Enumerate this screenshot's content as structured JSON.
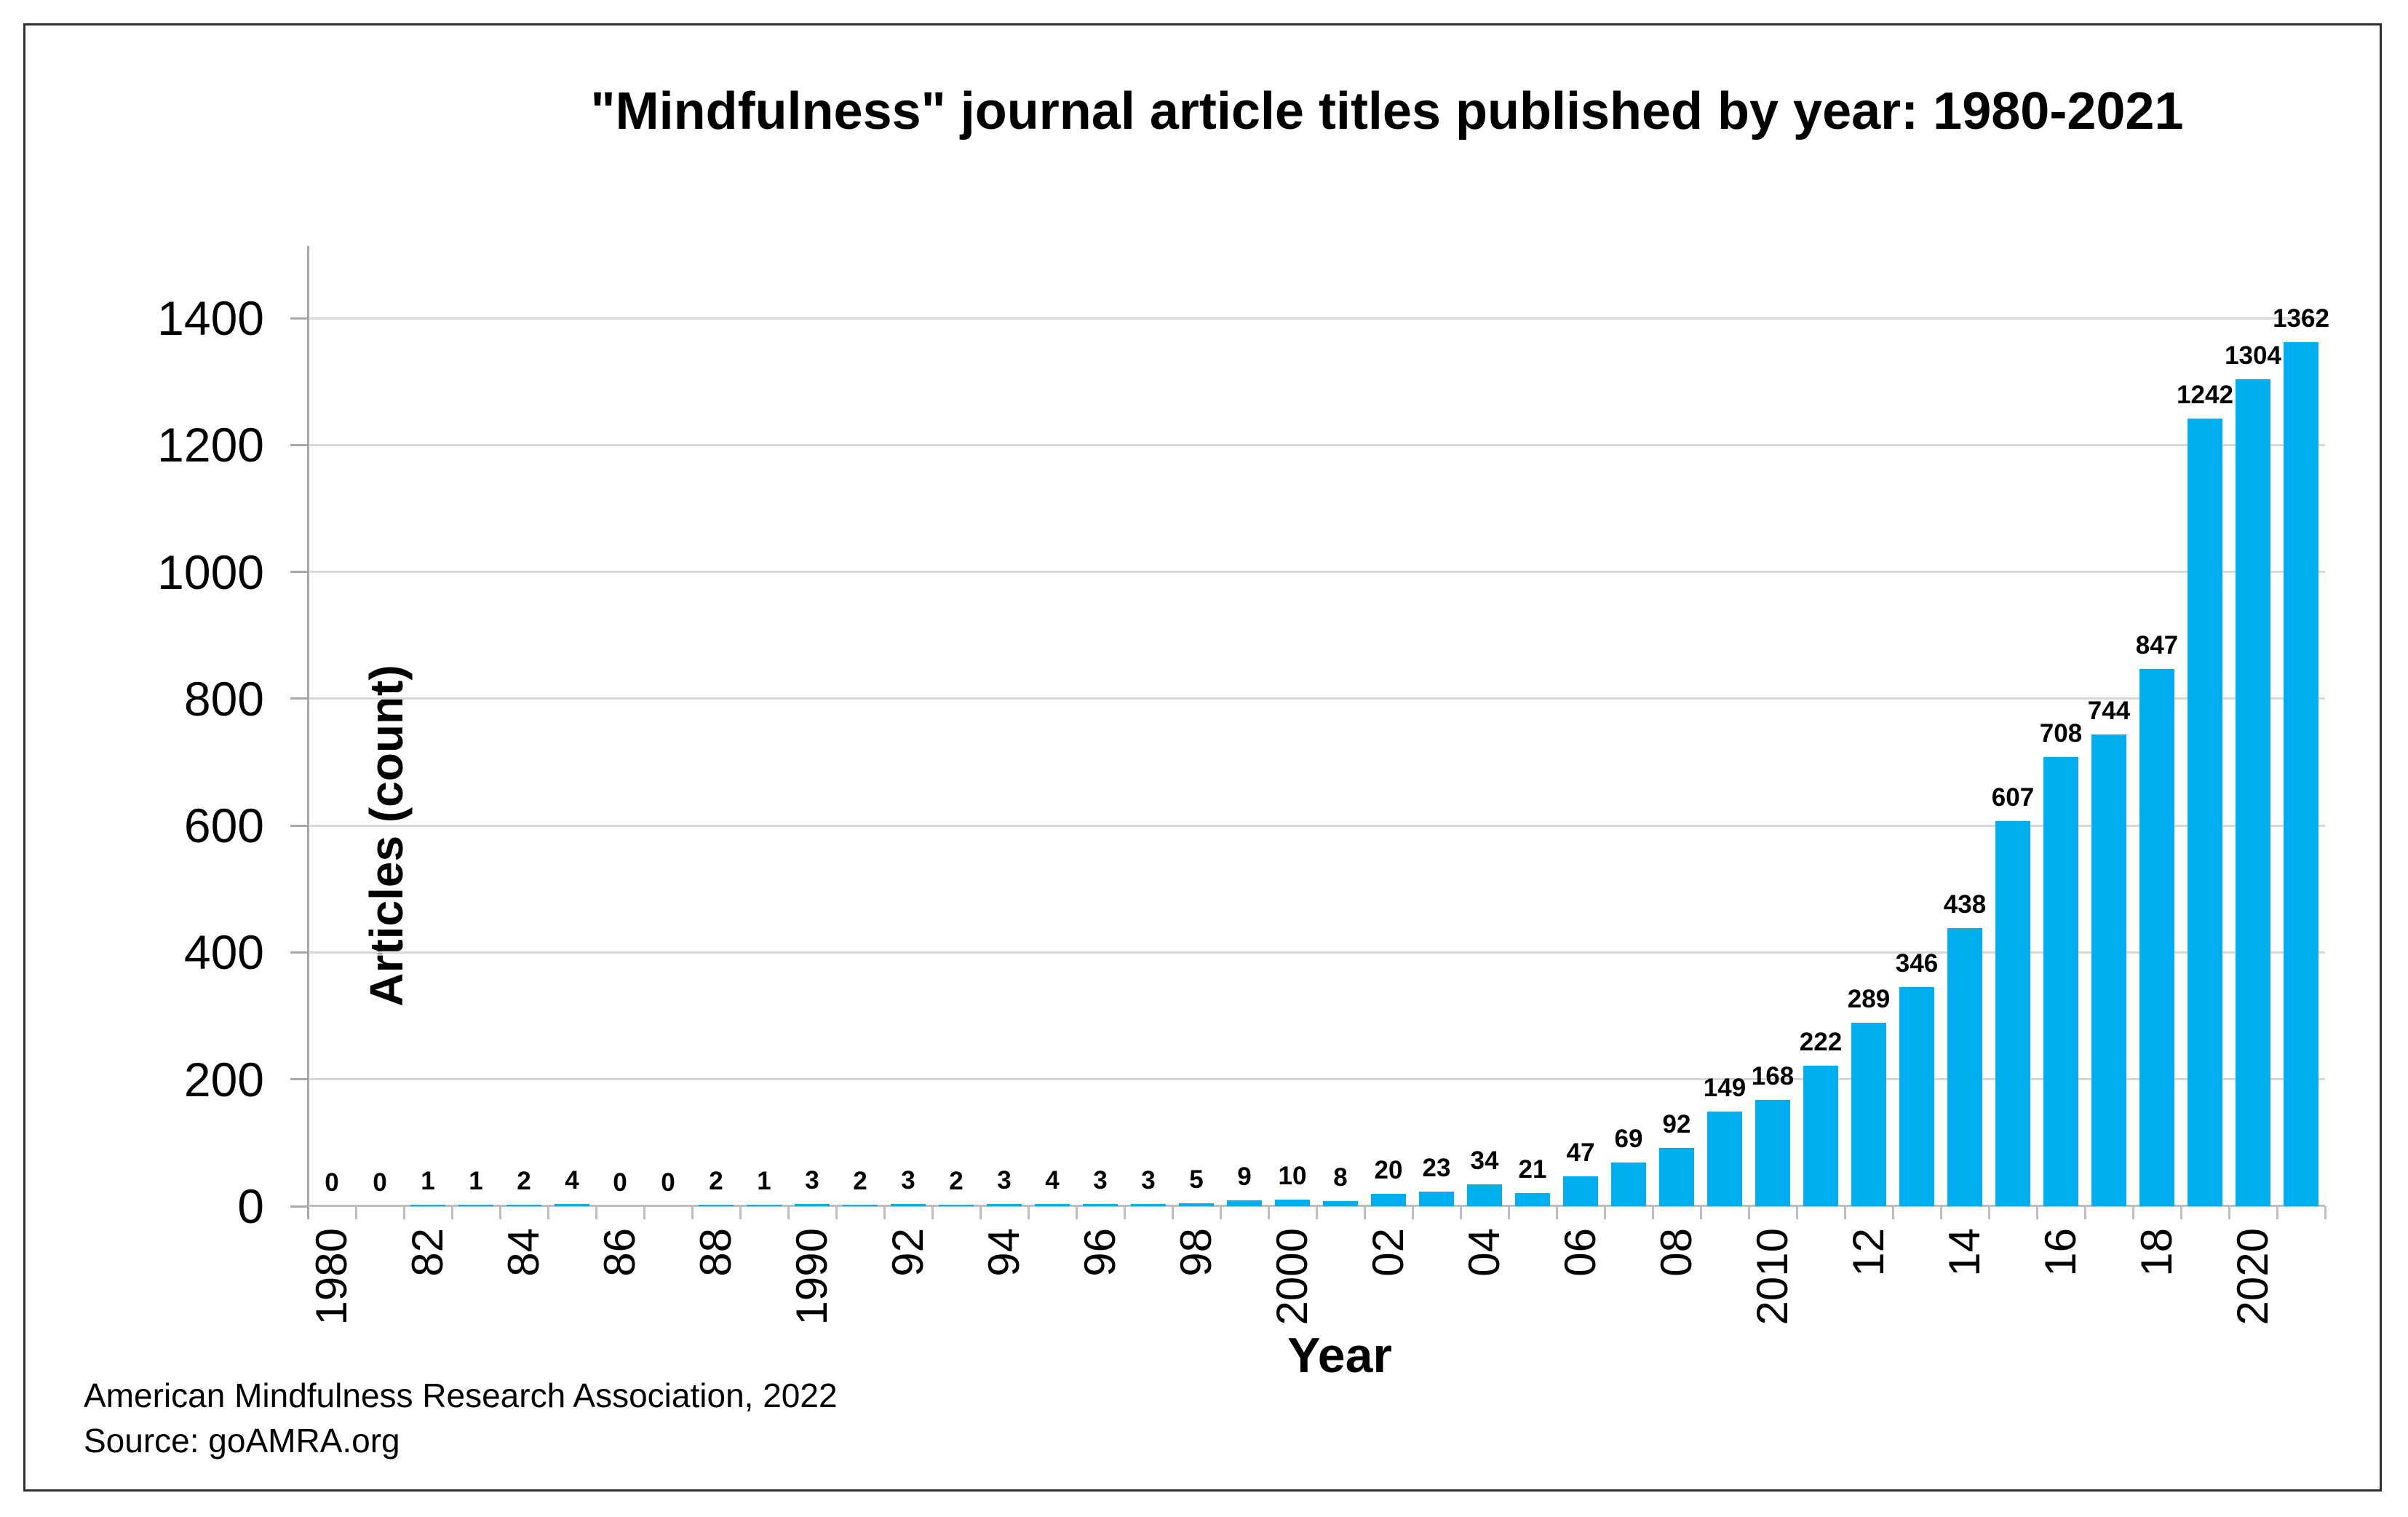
{
  "chart_data": {
    "type": "bar",
    "title": "\"Mindfulness\" journal article titles published by year: 1980-2021",
    "xlabel": "Year",
    "ylabel": "Articles (count)",
    "ylim": [
      0,
      1400
    ],
    "yticks": [
      0,
      200,
      400,
      600,
      800,
      1000,
      1200,
      1400
    ],
    "grid": true,
    "legend": "none",
    "bar_color": "#00AEEF",
    "grid_color": "#d8d8d8",
    "axis_color": "#a8a8a8",
    "categories": [
      1980,
      1981,
      1982,
      1983,
      1984,
      1985,
      1986,
      1987,
      1988,
      1989,
      1990,
      1991,
      1992,
      1993,
      1994,
      1995,
      1996,
      1997,
      1998,
      1999,
      2000,
      2001,
      2002,
      2003,
      2004,
      2005,
      2006,
      2007,
      2008,
      2009,
      2010,
      2011,
      2012,
      2013,
      2014,
      2015,
      2016,
      2017,
      2018,
      2019,
      2020,
      2021
    ],
    "values": [
      0,
      0,
      1,
      1,
      2,
      4,
      0,
      0,
      2,
      1,
      3,
      2,
      3,
      2,
      3,
      4,
      3,
      3,
      5,
      9,
      10,
      8,
      20,
      23,
      34,
      21,
      47,
      69,
      92,
      149,
      168,
      222,
      289,
      346,
      438,
      607,
      708,
      744,
      847,
      1242,
      1304,
      1362
    ],
    "x_tick_labels": [
      "1980",
      "",
      "82",
      "",
      "84",
      "",
      "86",
      "",
      "88",
      "",
      "1990",
      "",
      "92",
      "",
      "94",
      "",
      "96",
      "",
      "98",
      "",
      "2000",
      "",
      "02",
      "",
      "04",
      "",
      "06",
      "",
      "08",
      "",
      "2010",
      "",
      "12",
      "",
      "14",
      "",
      "16",
      "",
      "18",
      "",
      "2020",
      ""
    ]
  },
  "footer": {
    "line1": "American Mindfulness Research Association, 2022",
    "line2": "Source: goAMRA.org"
  }
}
